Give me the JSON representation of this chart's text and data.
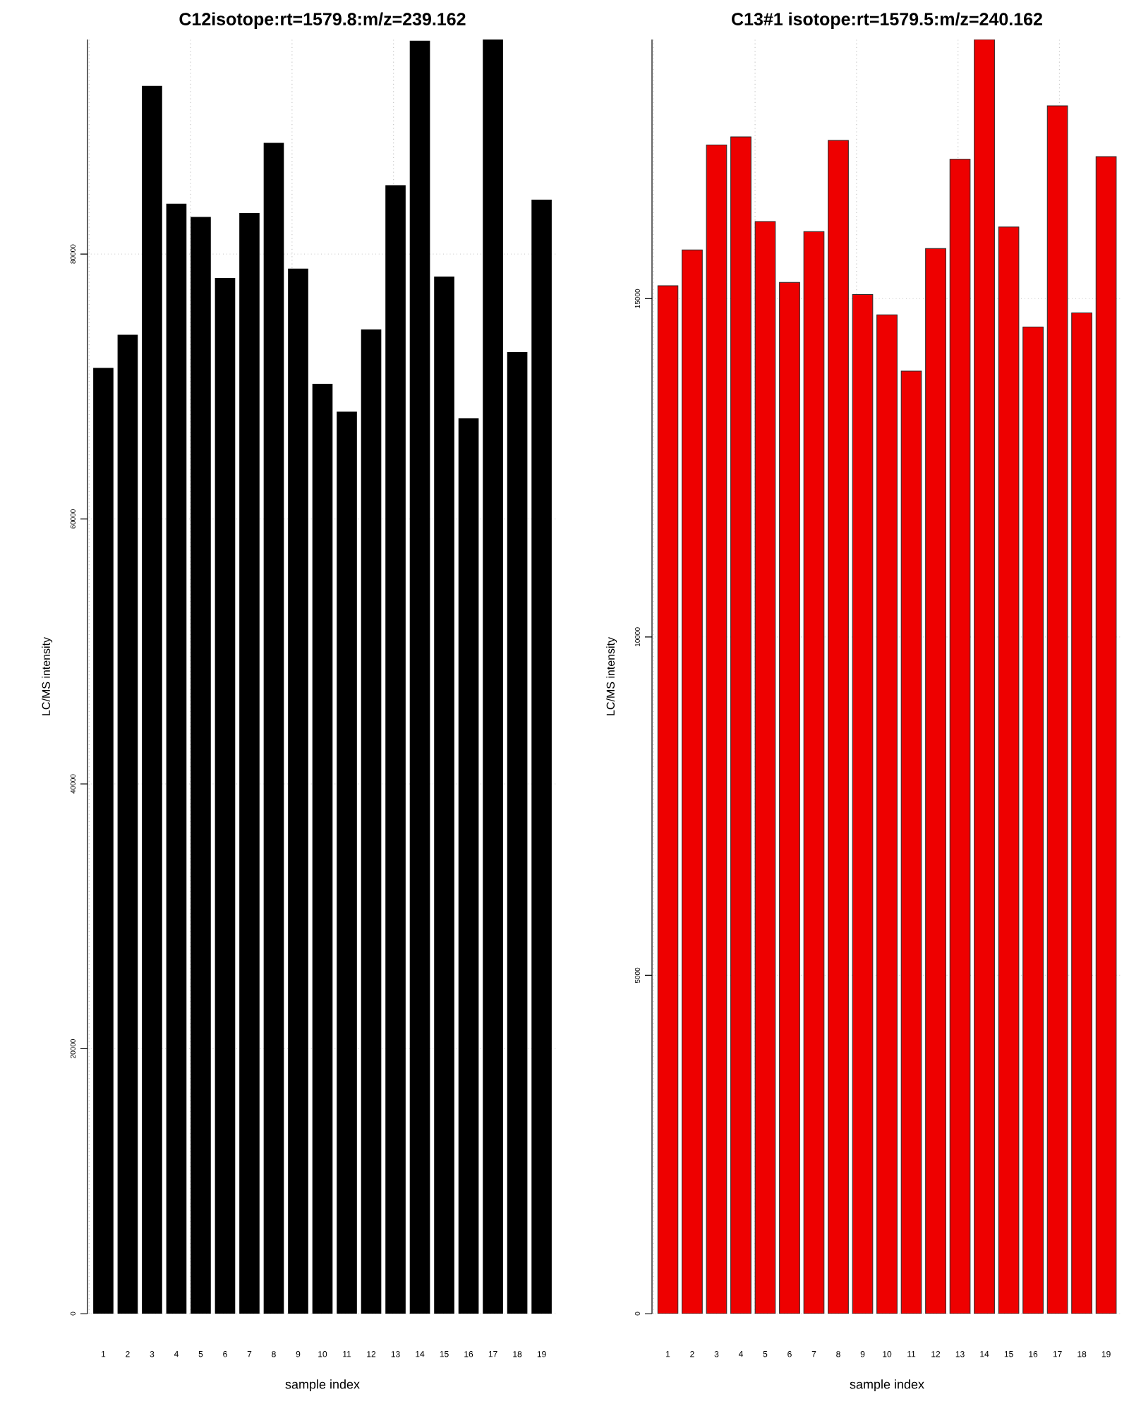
{
  "chart_data": [
    {
      "type": "bar",
      "title": "C12isotope:rt=1579.8:m/z=239.162",
      "xlabel": "sample index",
      "ylabel": "LC/MS intensity",
      "categories": [
        "1",
        "2",
        "3",
        "4",
        "5",
        "6",
        "7",
        "8",
        "9",
        "10",
        "11",
        "12",
        "13",
        "14",
        "15",
        "16",
        "17",
        "18",
        "19"
      ],
      "values": [
        71400,
        73900,
        92700,
        83800,
        82800,
        78200,
        83100,
        88400,
        78900,
        70200,
        68100,
        74300,
        85200,
        96100,
        78300,
        67600,
        96200,
        72600,
        84100
      ],
      "color": "#000000",
      "ylim": [
        0,
        96200
      ],
      "yticks": [
        0,
        20000,
        40000,
        60000,
        80000
      ],
      "grid": true
    },
    {
      "type": "bar",
      "title": "C13#1 isotope:rt=1579.5:m/z=240.162",
      "xlabel": "sample index",
      "ylabel": "LC/MS intensity",
      "categories": [
        "1",
        "2",
        "3",
        "4",
        "5",
        "6",
        "7",
        "8",
        "9",
        "10",
        "11",
        "12",
        "13",
        "14",
        "15",
        "16",
        "17",
        "18",
        "19"
      ],
      "values": [
        15190,
        15720,
        17270,
        17390,
        16140,
        15240,
        15990,
        17340,
        15060,
        14760,
        13930,
        15740,
        17060,
        18830,
        16060,
        14580,
        17850,
        14790,
        17100
      ],
      "color": "#ee0000",
      "ylim": [
        0,
        18830
      ],
      "yticks": [
        0,
        5000,
        10000,
        15000
      ],
      "grid": true
    }
  ]
}
